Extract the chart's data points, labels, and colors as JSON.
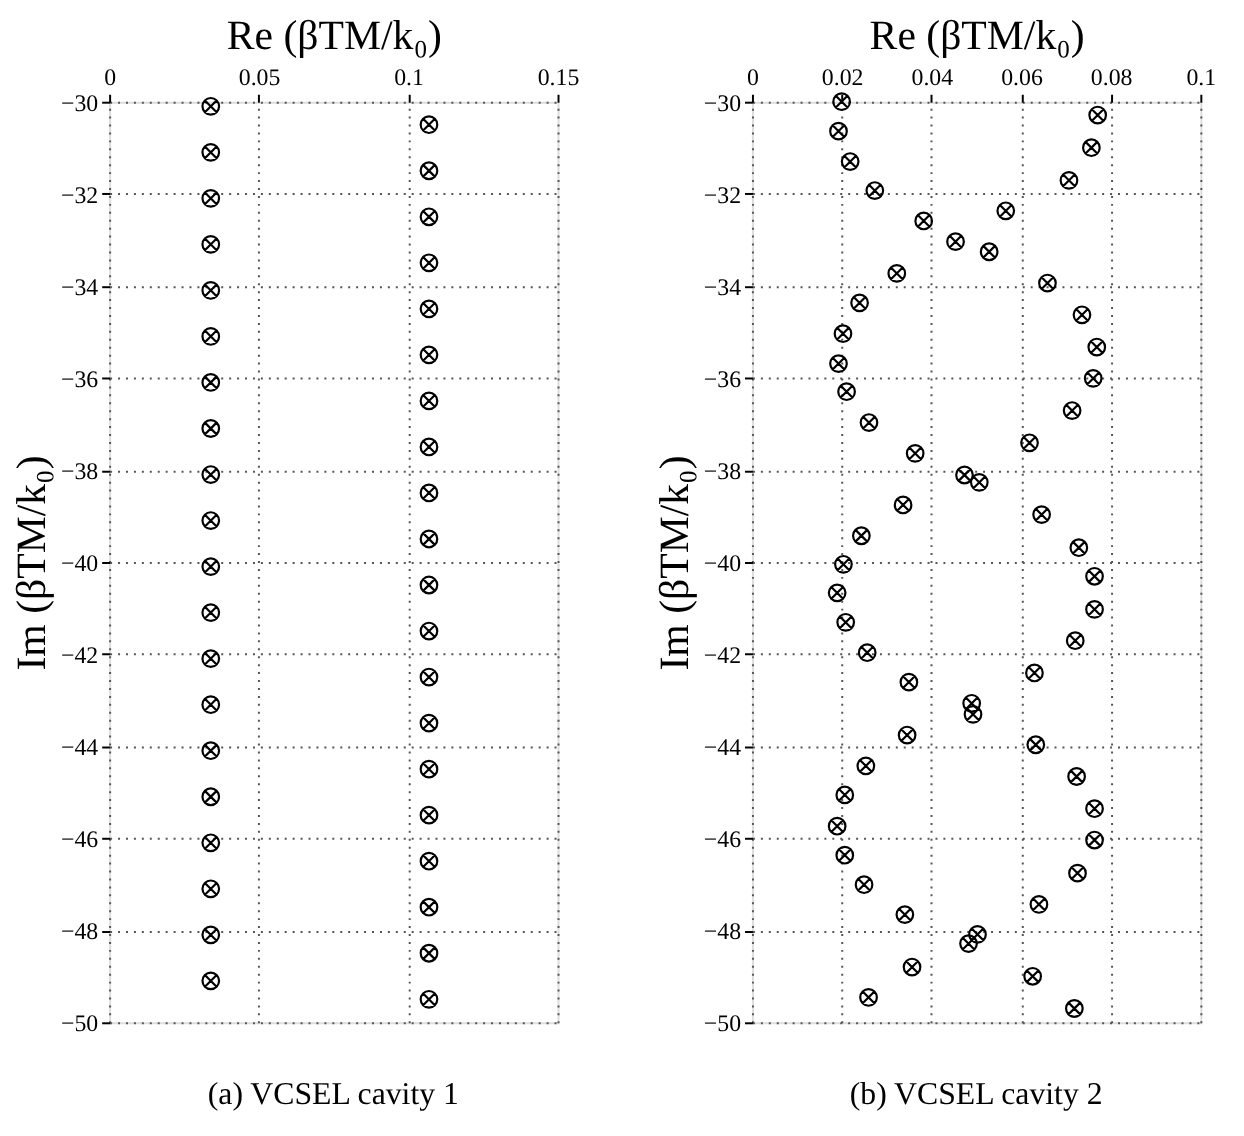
{
  "chart_data": [
    {
      "type": "scatter",
      "title": "(a) VCSEL cavity 1",
      "xlabel": "Re (βTM/k₀)",
      "ylabel": "Im (βTM/k₀)",
      "xlim": [
        0,
        0.15
      ],
      "xticks": [
        0,
        0.05,
        0.1,
        0.15
      ],
      "ylim": [
        -50,
        -30
      ],
      "yticks": [
        -50,
        -48,
        -46,
        -44,
        -42,
        -40,
        -38,
        -36,
        -34,
        -32,
        -30
      ],
      "grid": true,
      "marker": "cross",
      "series": [
        {
          "color": "#000000",
          "x": [
            0.034,
            0.034,
            0.034,
            0.034,
            0.034,
            0.034,
            0.034,
            0.034,
            0.034,
            0.034,
            0.034,
            0.034,
            0.034,
            0.034,
            0.034,
            0.034,
            0.034,
            0.034,
            0.034,
            0.034
          ],
          "values": [
            -30.1,
            -31.1,
            -32.1,
            -33.1,
            -34.1,
            -35.1,
            -36.1,
            -37.1,
            -38.1,
            -39.1,
            -40.1,
            -41.1,
            -42.1,
            -43.1,
            -44.1,
            -45.1,
            -46.1,
            -47.1,
            -48.1,
            -49.1
          ]
        },
        {
          "color": "#000000",
          "x": [
            0.107,
            0.107,
            0.107,
            0.107,
            0.107,
            0.107,
            0.107,
            0.107,
            0.107,
            0.107,
            0.107,
            0.107,
            0.107,
            0.107,
            0.107,
            0.107,
            0.107,
            0.107,
            0.107,
            0.107
          ],
          "values": [
            -30.5,
            -31.5,
            -32.5,
            -33.5,
            -34.5,
            -35.5,
            -36.5,
            -37.5,
            -38.5,
            -39.5,
            -40.5,
            -41.5,
            -42.5,
            -43.5,
            -44.5,
            -45.5,
            -46.5,
            -47.5,
            -48.5,
            -49.5
          ]
        }
      ]
    },
    {
      "type": "scatter",
      "title": "(b) VCSEL cavity 2",
      "xlabel": "Re (βTM/k₀)",
      "ylabel": "Im (βTM/k₀)",
      "xlim": [
        0,
        0.1
      ],
      "xticks": [
        0,
        0.02,
        0.04,
        0.06,
        0.08,
        0.1
      ],
      "ylim": [
        -50,
        -30
      ],
      "yticks": [
        -50,
        -48,
        -46,
        -44,
        -42,
        -40,
        -38,
        -36,
        -34,
        -32,
        -30
      ],
      "grid": true,
      "marker": "cross",
      "series": [
        {
          "color": "#000000",
          "x": [
            0.02,
            0.0193,
            0.0219,
            0.0274,
            0.0383,
            0.0454,
            0.0529,
            0.0323,
            0.024,
            0.0203,
            0.0193,
            0.0211,
            0.0261,
            0.0364,
            0.0474,
            0.0507,
            0.0337,
            0.0244,
            0.0204,
            0.019,
            0.0209,
            0.0257,
            0.035,
            0.049,
            0.0493,
            0.0346,
            0.0254,
            0.0207,
            0.019,
            0.0207,
            0.025,
            0.0341,
            0.0503,
            0.0483,
            0.0357,
            0.026
          ],
          "values": [
            -30.0,
            -30.64,
            -31.3,
            -31.93,
            -32.59,
            -33.04,
            -33.26,
            -33.73,
            -34.37,
            -35.04,
            -35.69,
            -36.3,
            -36.97,
            -37.64,
            -38.11,
            -38.27,
            -38.76,
            -39.43,
            -40.05,
            -40.67,
            -41.31,
            -41.97,
            -42.61,
            -43.07,
            -43.31,
            -43.76,
            -44.43,
            -45.06,
            -45.74,
            -46.37,
            -47.01,
            -47.66,
            -48.09,
            -48.29,
            -48.8,
            -49.46
          ]
        },
        {
          "color": "#000000",
          "x": [
            0.0771,
            0.0757,
            0.0707,
            0.0566,
            0.0659,
            0.0736,
            0.0769,
            0.0761,
            0.0714,
            0.0619,
            0.0646,
            0.0729,
            0.0764,
            0.0764,
            0.0721,
            0.063,
            0.0633,
            0.0724,
            0.0764,
            0.0764,
            0.0726,
            0.064,
            0.0626,
            0.0719
          ],
          "values": [
            -30.29,
            -31.0,
            -31.71,
            -32.37,
            -33.94,
            -34.63,
            -35.33,
            -36.01,
            -36.71,
            -37.41,
            -38.97,
            -39.69,
            -40.31,
            -41.03,
            -41.71,
            -42.41,
            -43.97,
            -44.66,
            -45.36,
            -46.04,
            -46.76,
            -47.44,
            -49.0,
            -49.7
          ]
        }
      ]
    }
  ]
}
